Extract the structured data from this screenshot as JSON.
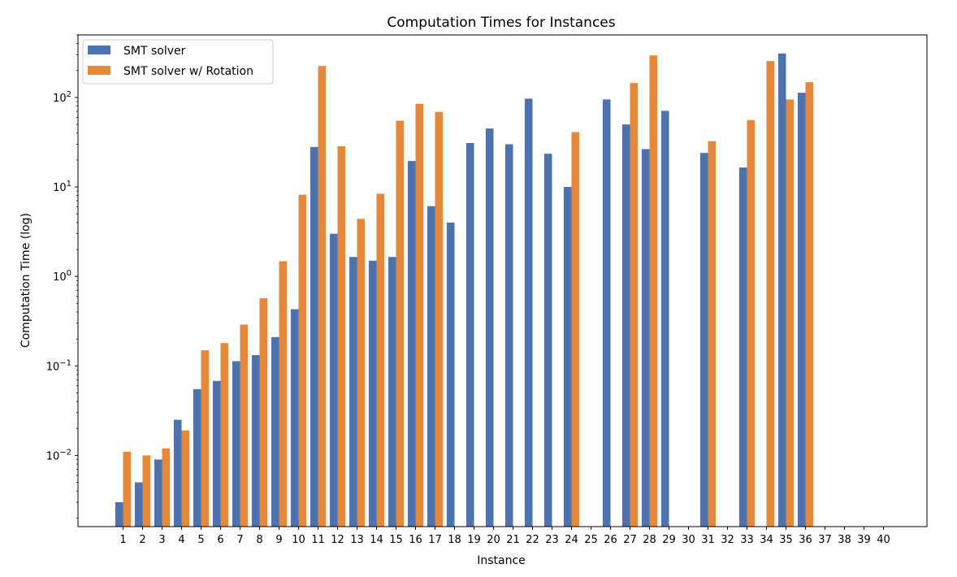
{
  "chart_data": {
    "type": "bar",
    "title": "Computation Times for Instances",
    "xlabel": "Instance",
    "ylabel": "Computation Time (log)",
    "yscale": "log",
    "ylim": [
      0.0016,
      500
    ],
    "yticks": [
      {
        "value": 0.01,
        "base": "10",
        "exp": "−2"
      },
      {
        "value": 0.1,
        "base": "10",
        "exp": "−1"
      },
      {
        "value": 1,
        "base": "10",
        "exp": "0"
      },
      {
        "value": 10,
        "base": "10",
        "exp": "1"
      },
      {
        "value": 100,
        "base": "10",
        "exp": "2"
      }
    ],
    "categories": [
      "1",
      "2",
      "3",
      "4",
      "5",
      "6",
      "7",
      "8",
      "9",
      "10",
      "11",
      "12",
      "13",
      "14",
      "15",
      "16",
      "17",
      "18",
      "19",
      "20",
      "21",
      "22",
      "23",
      "24",
      "25",
      "26",
      "27",
      "28",
      "29",
      "30",
      "31",
      "32",
      "33",
      "34",
      "35",
      "36",
      "37",
      "38",
      "39",
      "40"
    ],
    "series": [
      {
        "name": "SMT solver",
        "color": "#4c72b0",
        "values": [
          0.003,
          0.005,
          0.009,
          0.025,
          0.055,
          0.068,
          0.113,
          0.132,
          0.21,
          0.43,
          28,
          3.0,
          1.65,
          1.5,
          1.65,
          19.5,
          6.1,
          4.0,
          31,
          45,
          30,
          97,
          23.5,
          10,
          null,
          95,
          50,
          26.5,
          71,
          null,
          24,
          null,
          16.5,
          null,
          310,
          113,
          null,
          null,
          null,
          null
        ]
      },
      {
        "name": "SMT solver w/ Rotation",
        "color": "#e5883a",
        "values": [
          0.011,
          0.01,
          0.012,
          0.019,
          0.15,
          0.18,
          0.29,
          0.57,
          1.48,
          8.2,
          225,
          28.5,
          4.4,
          8.4,
          55,
          85,
          69,
          null,
          null,
          null,
          null,
          null,
          null,
          41,
          null,
          null,
          145,
          295,
          null,
          null,
          32.5,
          null,
          56,
          255,
          95,
          148,
          null,
          null,
          null,
          null
        ]
      }
    ],
    "legend": {
      "position": "top-left"
    },
    "grid": false
  }
}
